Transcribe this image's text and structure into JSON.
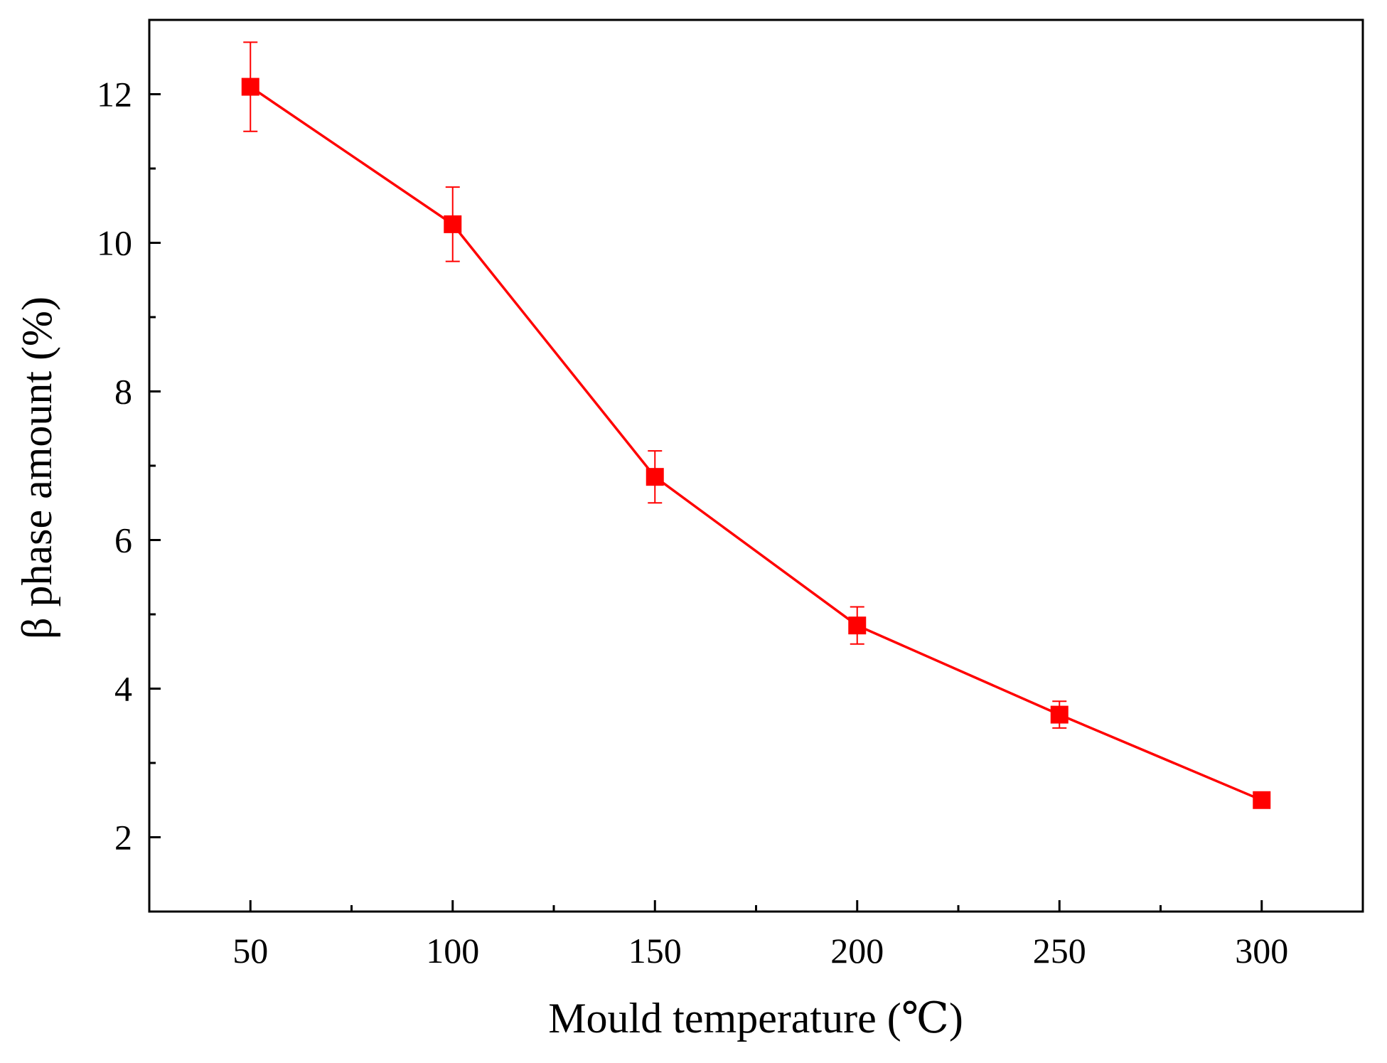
{
  "chart_data": {
    "type": "line",
    "title": "",
    "xlabel": "Mould temperature (℃)",
    "ylabel": "β phase amount (%)",
    "x": [
      50,
      100,
      150,
      200,
      250,
      300
    ],
    "series": [
      {
        "name": "β phase amount",
        "values": [
          12.1,
          10.25,
          6.85,
          4.85,
          3.65,
          2.5
        ],
        "errors": [
          0.6,
          0.5,
          0.35,
          0.25,
          0.18,
          0.0
        ],
        "color": "#ff0000",
        "marker": "square"
      }
    ],
    "xlim": [
      25,
      325
    ],
    "ylim": [
      1,
      13
    ],
    "xticks": [
      50,
      100,
      150,
      200,
      250,
      300
    ],
    "xtick_labels": [
      "50",
      "100",
      "150",
      "200",
      "250",
      "300"
    ],
    "x_minor_ticks": [
      75,
      125,
      175,
      225,
      275
    ],
    "yticks": [
      2,
      4,
      6,
      8,
      10,
      12
    ],
    "ytick_labels": [
      "2",
      "4",
      "6",
      "8",
      "10",
      "12"
    ],
    "y_minor_ticks": [
      3,
      5,
      7,
      9,
      11
    ],
    "grid": false,
    "legend": "none"
  }
}
